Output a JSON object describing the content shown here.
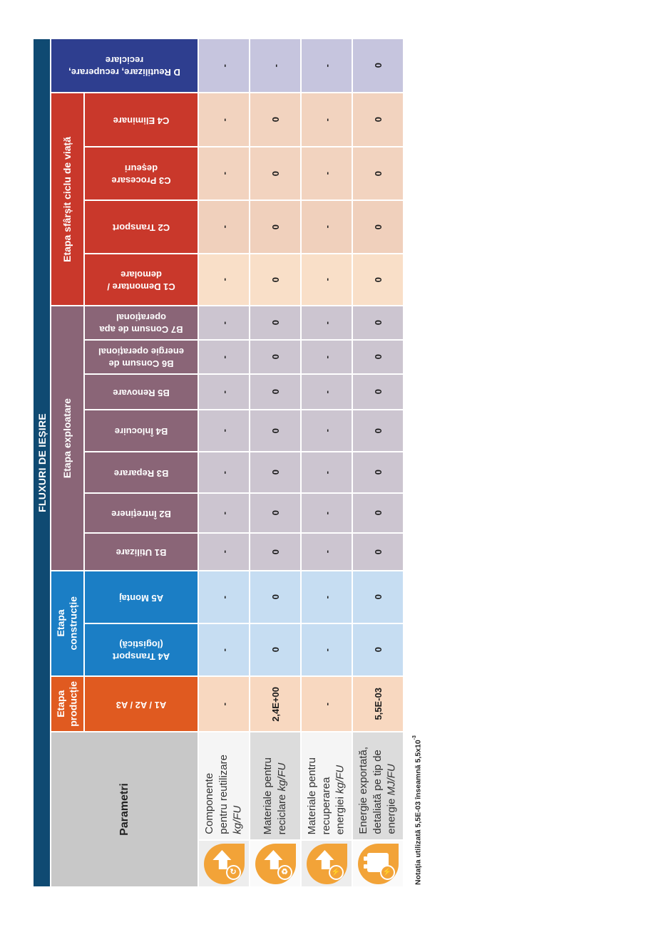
{
  "table": {
    "title": "FLUXURI DE IEȘIRE",
    "parameters_header": "Parametri",
    "parameters_header_bg": "#c8c8c8",
    "groups": [
      {
        "id": "eol",
        "label": "Etapa sfârșit ciclu de viață",
        "color": "#c9382b",
        "row_start": 2,
        "row_span": 4
      },
      {
        "id": "exploatare",
        "label": "Etapa exploatare",
        "color": "#8a6577",
        "row_start": 6,
        "row_span": 7
      },
      {
        "id": "constructie",
        "label": "Etapa\nconstrucție",
        "color": "#1b7ec5",
        "row_start": 13,
        "row_span": 2
      },
      {
        "id": "productie",
        "label": "Etapa\nproducție",
        "color": "#e05a20",
        "row_start": 15,
        "row_span": 1
      }
    ],
    "stages": [
      {
        "id": "D",
        "label": "D Reutilizare, recuperare,\nreciclare",
        "color": "#2e3e8f",
        "tint": "#c6c5de",
        "full_width": true,
        "values": [
          "-",
          "-",
          "-",
          "0"
        ]
      },
      {
        "id": "C4",
        "label": "C4 Eliminare",
        "color": "#c9382b",
        "tint": "#f2d3bf",
        "values": [
          "-",
          "0",
          "-",
          "0"
        ]
      },
      {
        "id": "C3",
        "label": "C3 Procesare\ndeșeuri",
        "color": "#c9382b",
        "tint": "#f2d3bf",
        "values": [
          "-",
          "0",
          "-",
          "0"
        ]
      },
      {
        "id": "C2",
        "label": "C2 Transport",
        "color": "#c9382b",
        "tint": "#f0d0bc",
        "values": [
          "-",
          "0",
          "-",
          "0"
        ]
      },
      {
        "id": "C1",
        "label": "C1 Demontare /\ndemolare",
        "color": "#c9382b",
        "tint": "#f9dfc8",
        "values": [
          "-",
          "0",
          "-",
          "0"
        ]
      },
      {
        "id": "B7",
        "label": "B7 Consum de apa\noperațional",
        "color": "#8a6577",
        "tint": "#ccc5d0",
        "values": [
          "-",
          "0",
          "-",
          "0"
        ]
      },
      {
        "id": "B6",
        "label": "B6 Consum de\nenergie operațional",
        "color": "#8a6577",
        "tint": "#ccc5d0",
        "values": [
          "-",
          "0",
          "-",
          "0"
        ]
      },
      {
        "id": "B5",
        "label": "B5 Renovare",
        "color": "#8a6577",
        "tint": "#ccc5d0",
        "values": [
          "-",
          "0",
          "-",
          "0"
        ]
      },
      {
        "id": "B4",
        "label": "B4 Înlocuire",
        "color": "#8a6577",
        "tint": "#ccc5d0",
        "values": [
          "-",
          "0",
          "-",
          "0"
        ]
      },
      {
        "id": "B3",
        "label": "B3 Reparare",
        "color": "#8a6577",
        "tint": "#ccc5d0",
        "values": [
          "-",
          "0",
          "-",
          "0"
        ]
      },
      {
        "id": "B2",
        "label": "B2 Întreținere",
        "color": "#8a6577",
        "tint": "#ccc5d0",
        "values": [
          "-",
          "0",
          "-",
          "0"
        ]
      },
      {
        "id": "B1",
        "label": "B1 Utilizare",
        "color": "#8a6577",
        "tint": "#ccc5d0",
        "values": [
          "-",
          "0",
          "-",
          "0"
        ]
      },
      {
        "id": "A5",
        "label": "A5 Montaj",
        "color": "#1b7ec5",
        "tint": "#c6ddf2",
        "values": [
          "-",
          "0",
          "-",
          "0"
        ]
      },
      {
        "id": "A4",
        "label": "A4 Transport\n(logistică)",
        "color": "#1b7ec5",
        "tint": "#c6ddf2",
        "values": [
          "-",
          "0",
          "-",
          "0"
        ]
      },
      {
        "id": "A1A2A3",
        "label": "A1 / A2 / A3",
        "color": "#e05a20",
        "tint": "#f8d8c0",
        "values": [
          "-",
          "2,4E+00",
          "-",
          "5,5E-03"
        ]
      }
    ],
    "parameters": [
      {
        "name": "Componente\npentru reutilizare",
        "unit": "kg/FU",
        "unit_new_line": true,
        "icon": "arrow-up-reuse-icon",
        "badge_glyph": "↻",
        "desc_bg": "#f5f5f5",
        "icon_bg": "#ededed"
      },
      {
        "name": "Materiale pentru\nreciclare",
        "unit": "kg/FU",
        "unit_new_line": false,
        "icon": "arrow-up-recycle-icon",
        "badge_glyph": "♻",
        "desc_bg": "#dcdcdc",
        "icon_bg": "#fafafa"
      },
      {
        "name": "Materiale pentru\nrecuperarea\nenergiei",
        "unit": "kg/FU",
        "unit_new_line": false,
        "icon": "arrow-up-energy-icon",
        "badge_glyph": "⚡",
        "desc_bg": "#f5f5f5",
        "icon_bg": "#ededed"
      },
      {
        "name": "Energie exportată,\ndetaliată pe tip de\nenergie",
        "unit": "MJ/FU",
        "unit_new_line": false,
        "icon": "exported-energy-icon",
        "badge_glyph": "⚡",
        "desc_bg": "#dcdcdc",
        "icon_bg": "#fafafa"
      }
    ]
  },
  "footnote": {
    "text": "Notația utilizată 5,5E-03 înseamnă 5,5x10",
    "sup": "-3"
  },
  "colors": {
    "sidebar": "#0f4a72",
    "icon_orange": "#f2a338",
    "page_bg": "#ffffff"
  }
}
